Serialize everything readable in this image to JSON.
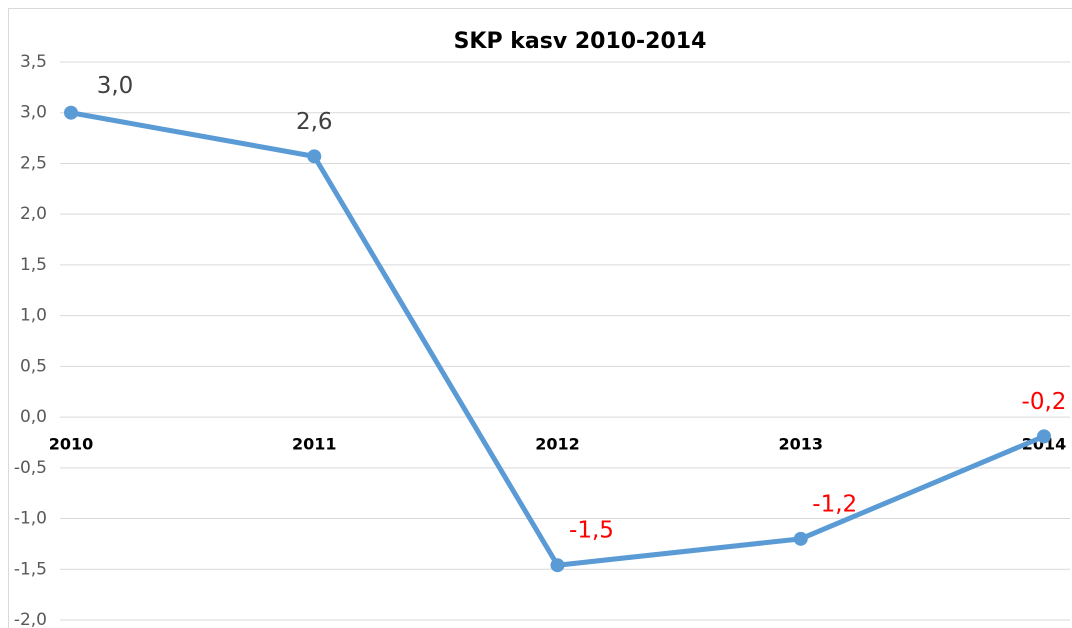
{
  "chart_data": {
    "type": "line",
    "title": "SKP kasv 2010-2014",
    "categories": [
      "2010",
      "2011",
      "2012",
      "2013",
      "2014"
    ],
    "series": [
      {
        "name": "SKP kasv",
        "color": "#5b9bd5",
        "values": [
          3.0,
          2.57,
          -1.46,
          -1.2,
          -0.19
        ],
        "value_labels": [
          "3,0",
          "2,6",
          "-1,5",
          "-1,2",
          "-0,2"
        ]
      }
    ],
    "ylim": [
      -2.0,
      3.5
    ],
    "yticks": [
      {
        "value": -2.0,
        "label": "-2,0"
      },
      {
        "value": -1.5,
        "label": "-1,5"
      },
      {
        "value": -1.0,
        "label": "-1,0"
      },
      {
        "value": -0.5,
        "label": "-0,5"
      },
      {
        "value": 0.0,
        "label": "0,0"
      },
      {
        "value": 0.5,
        "label": "0,5"
      },
      {
        "value": 1.0,
        "label": "1,0"
      },
      {
        "value": 1.5,
        "label": "1,5"
      },
      {
        "value": 2.0,
        "label": "2,0"
      },
      {
        "value": 2.5,
        "label": "2,5"
      },
      {
        "value": 3.0,
        "label": "3,0"
      },
      {
        "value": 3.5,
        "label": "3,5"
      }
    ],
    "grid": true
  }
}
